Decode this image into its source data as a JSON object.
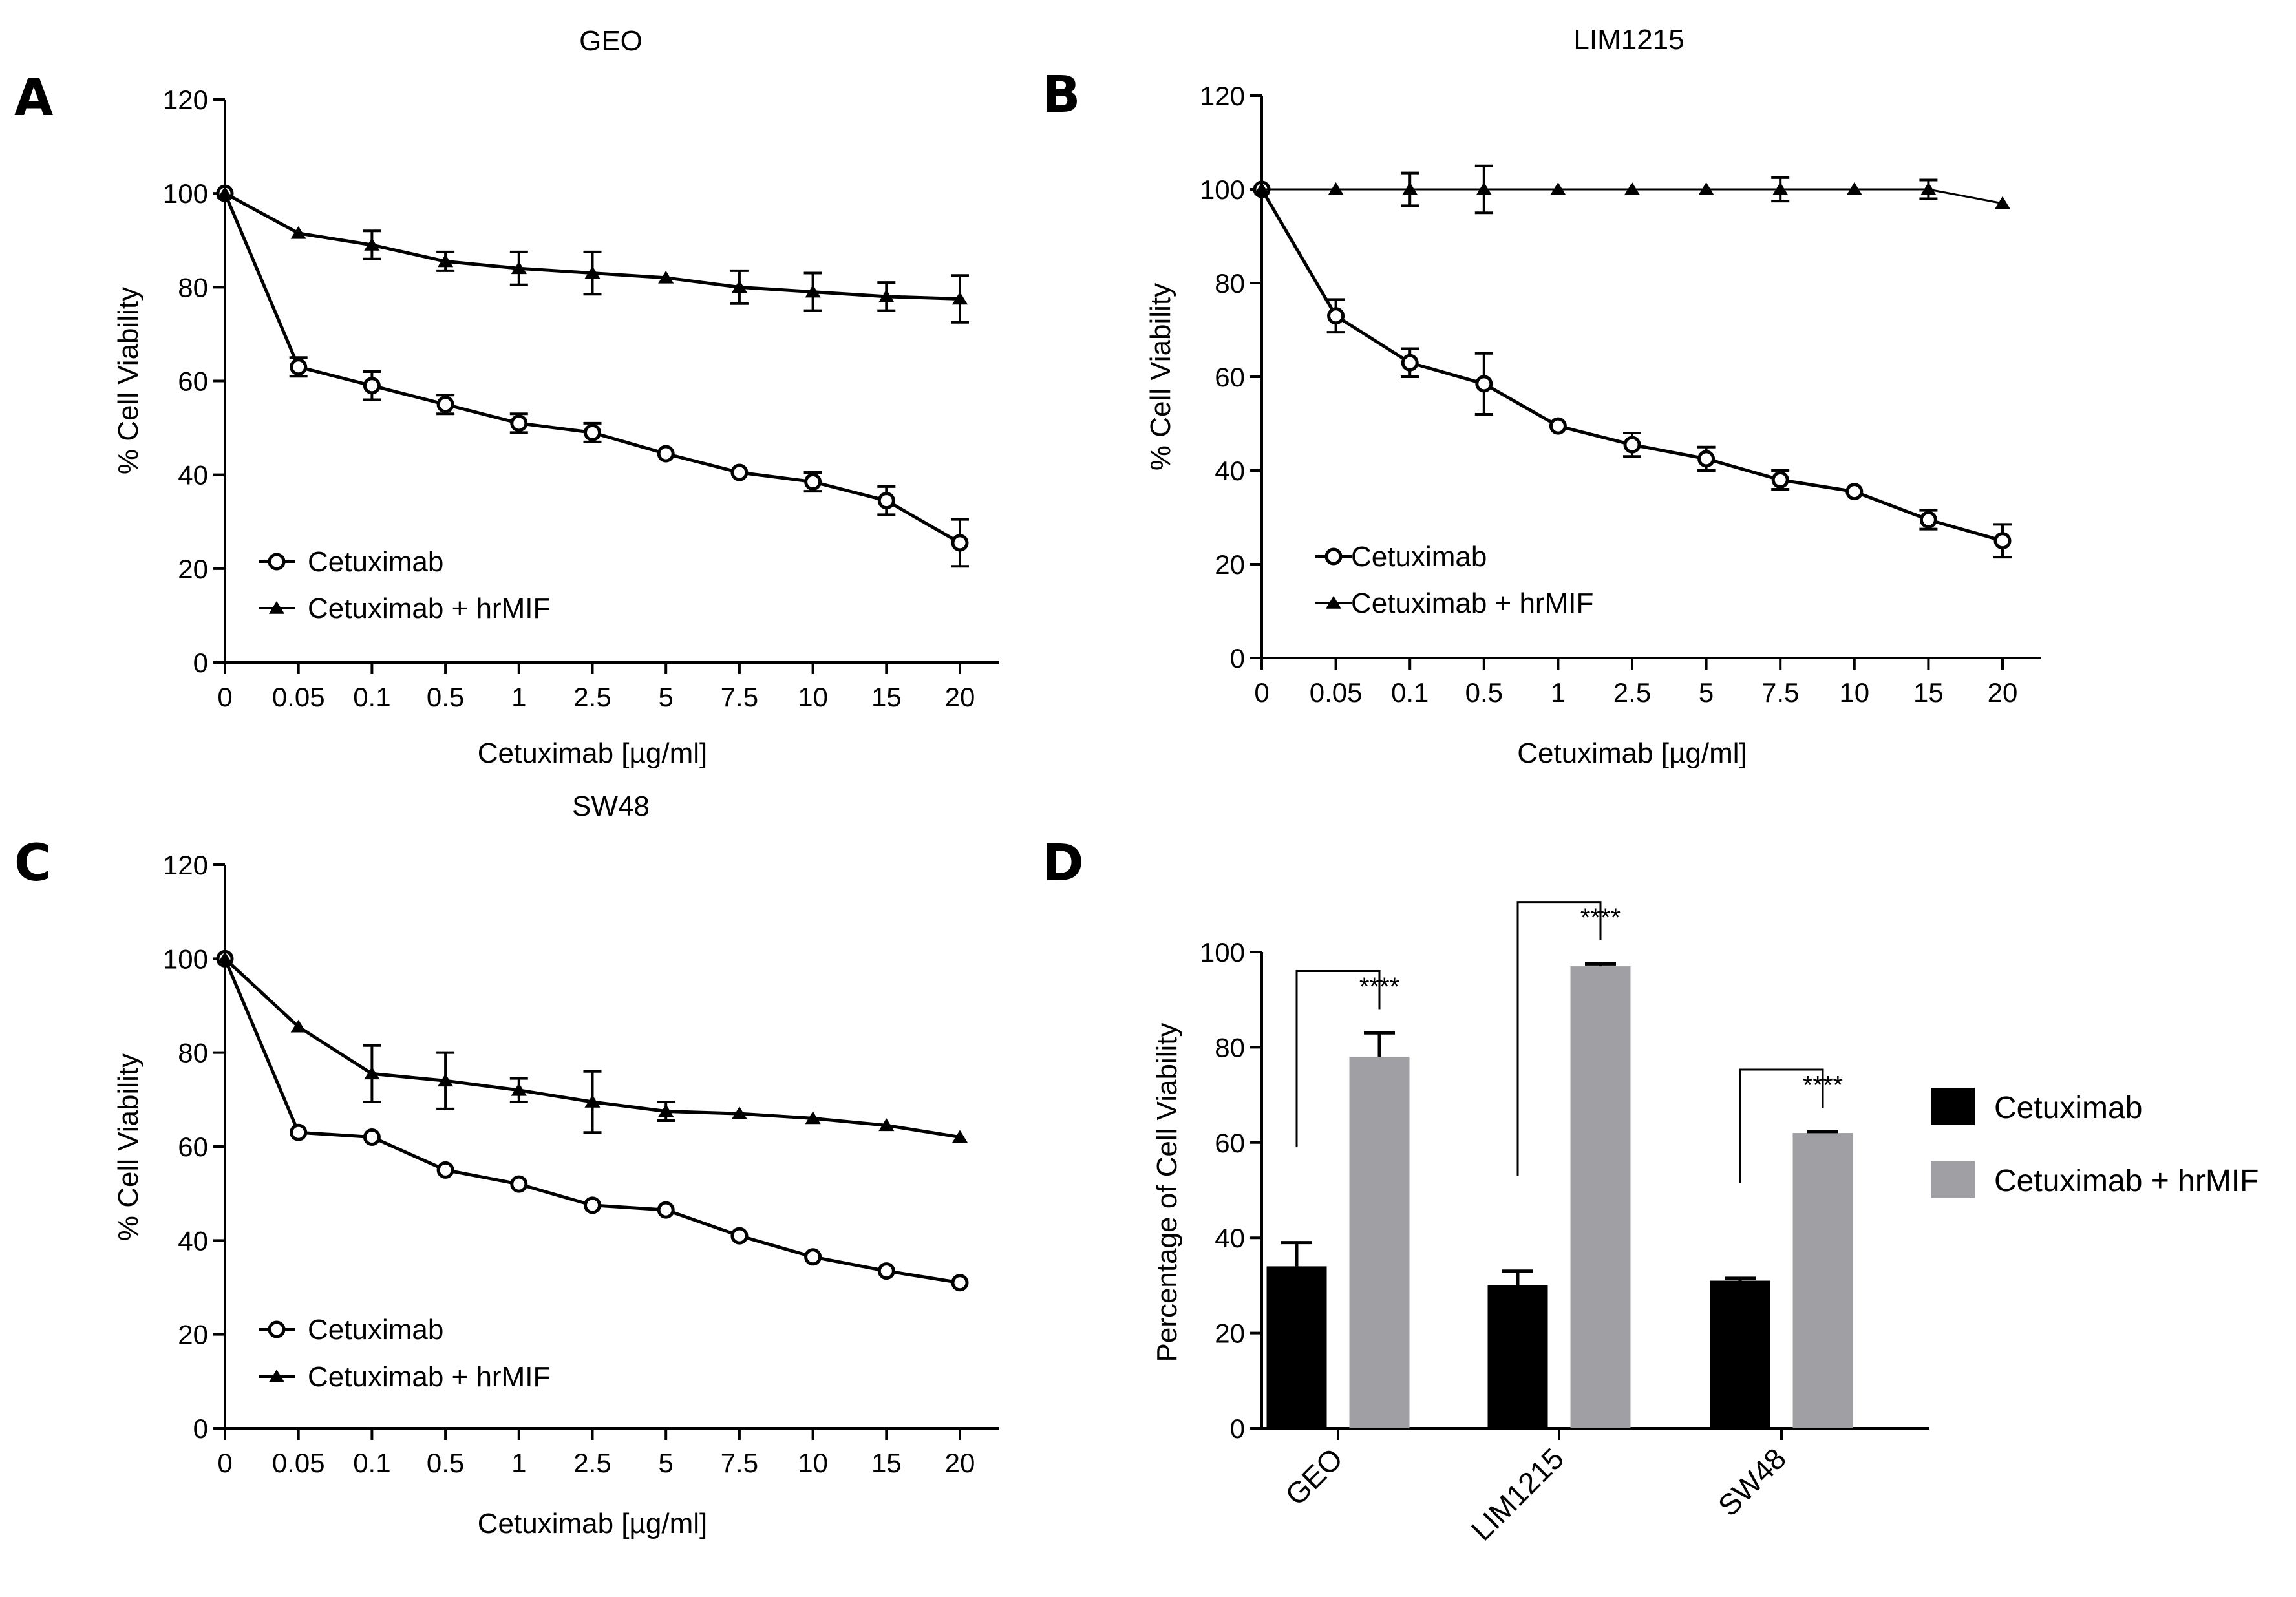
{
  "chart_data": [
    {
      "panel": "A",
      "type": "line",
      "title": "GEO",
      "xlabel": "Cetuximab [µg/ml]",
      "ylabel": "% Cell Viability",
      "categories": [
        "0",
        "0.05",
        "0.1",
        "0.5",
        "1",
        "2.5",
        "5",
        "7.5",
        "10",
        "15",
        "20"
      ],
      "ylim": [
        0,
        120
      ],
      "yticks": [
        "0",
        "20",
        "40",
        "60",
        "80",
        "100",
        "120"
      ],
      "legend_position": "bottom-left",
      "series": [
        {
          "name": "Cetuximab",
          "marker": "circle",
          "values": [
            100,
            63,
            59,
            55,
            51,
            49,
            44.5,
            40.5,
            38.5,
            34.5,
            25.5
          ],
          "errors": [
            0,
            2,
            3,
            2,
            2,
            2,
            0,
            0,
            2,
            3,
            5
          ]
        },
        {
          "name": "Cetuximab + hrMIF",
          "marker": "triangle",
          "values": [
            100,
            91.5,
            89,
            85.5,
            84,
            83,
            82,
            80,
            79,
            78,
            77.5
          ],
          "errors": [
            0,
            0,
            3,
            2,
            3.5,
            4.5,
            0,
            3.5,
            4,
            3,
            5
          ]
        }
      ]
    },
    {
      "panel": "B",
      "type": "line",
      "title": "LIM1215",
      "xlabel": "Cetuximab [µg/ml]",
      "ylabel": "% Cell Viability",
      "categories": [
        "0",
        "0.05",
        "0.1",
        "0.5",
        "1",
        "2.5",
        "5",
        "7.5",
        "10",
        "15",
        "20"
      ],
      "ylim": [
        0,
        120
      ],
      "yticks": [
        "0",
        "20",
        "40",
        "60",
        "80",
        "100",
        "120"
      ],
      "legend_position": "bottom-left",
      "series": [
        {
          "name": "Cetuximab",
          "marker": "circle",
          "values": [
            100,
            73,
            63,
            58.5,
            49.5,
            45.5,
            42.5,
            38,
            35.5,
            29.5,
            25
          ],
          "errors": [
            0,
            3.5,
            3,
            6.5,
            0,
            2.5,
            2.5,
            2,
            0,
            2,
            3.5
          ]
        },
        {
          "name": "Cetuximab + hrMIF",
          "marker": "triangle",
          "values": [
            100,
            100,
            100,
            100,
            100,
            100,
            100,
            100,
            100,
            100,
            97
          ],
          "errors": [
            0,
            0,
            3.5,
            5,
            0,
            0,
            0,
            2.5,
            0,
            2,
            0
          ]
        }
      ]
    },
    {
      "panel": "C",
      "type": "line",
      "title": "SW48",
      "xlabel": "Cetuximab [µg/ml]",
      "ylabel": "% Cell Viability",
      "categories": [
        "0",
        "0.05",
        "0.1",
        "0.5",
        "1",
        "2.5",
        "5",
        "7.5",
        "10",
        "15",
        "20"
      ],
      "ylim": [
        0,
        120
      ],
      "yticks": [
        "0",
        "20",
        "40",
        "60",
        "80",
        "100",
        "120"
      ],
      "legend_position": "bottom-left",
      "series": [
        {
          "name": "Cetuximab",
          "marker": "circle",
          "values": [
            100,
            63,
            62,
            55,
            52,
            47.5,
            46.5,
            41,
            36.5,
            33.5,
            31
          ],
          "errors": [
            0,
            0,
            0,
            0,
            0,
            0,
            0,
            0,
            0,
            0,
            0
          ]
        },
        {
          "name": "Cetuximab + hrMIF",
          "marker": "triangle",
          "values": [
            100,
            85.5,
            75.5,
            74,
            72,
            69.5,
            67.5,
            67,
            66,
            64.5,
            62
          ],
          "errors": [
            0,
            0,
            6,
            6,
            2.5,
            6.5,
            2,
            0,
            0,
            0,
            0
          ]
        }
      ]
    },
    {
      "panel": "D",
      "type": "bar",
      "title": "",
      "xlabel": "",
      "ylabel": "Percentage of Cell Viability",
      "categories": [
        "GEO",
        "LIM1215",
        "SW48"
      ],
      "ylim": [
        0,
        100
      ],
      "yticks": [
        "0",
        "20",
        "40",
        "60",
        "80",
        "100"
      ],
      "legend_position": "right",
      "series": [
        {
          "name": "Cetuximab",
          "color": "#000000",
          "values": [
            34,
            30,
            31
          ],
          "errors": [
            5,
            3,
            0.5
          ]
        },
        {
          "name": "Cetuximab + hrMIF",
          "color": "#a0a0a4",
          "values": [
            78,
            97,
            62
          ],
          "errors": [
            5,
            0.5,
            0.3
          ]
        }
      ],
      "significance": [
        "****",
        "****",
        "****"
      ]
    }
  ]
}
